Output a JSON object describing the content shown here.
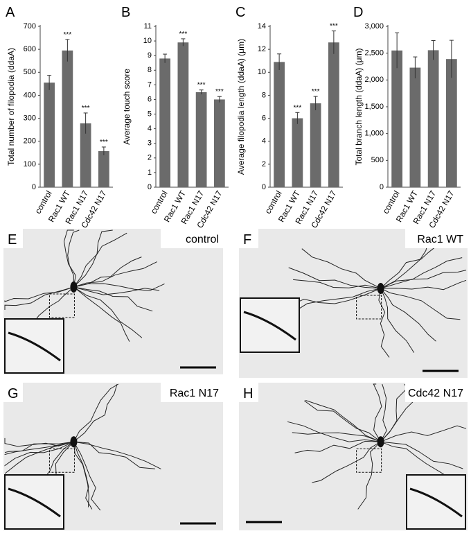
{
  "chart_data": [
    {
      "type": "bar",
      "letter": "A",
      "y_label": "Total number of filopodia (ddaA)",
      "categories": [
        "control",
        "Rac1 WT",
        "Rac1 N17",
        "Cdc42 N17"
      ],
      "values": [
        455,
        595,
        278,
        157
      ],
      "errors": [
        32,
        48,
        45,
        18
      ],
      "annotations": [
        null,
        "***",
        "***",
        "***"
      ],
      "color": "#6b6b6b",
      "ylim": [
        0,
        700
      ],
      "yticks": [
        0,
        100,
        200,
        300,
        400,
        500,
        600,
        700
      ]
    },
    {
      "type": "bar",
      "letter": "B",
      "y_label": "Average touch score",
      "categories": [
        "control",
        "Rac1 WT",
        "Rac1 N17",
        "Cdc42 N17"
      ],
      "values": [
        8.8,
        9.9,
        6.5,
        6.0
      ],
      "errors": [
        0.3,
        0.25,
        0.15,
        0.2
      ],
      "annotations": [
        null,
        "***",
        "***",
        "***"
      ],
      "color": "#6b6b6b",
      "ylim": [
        0,
        11
      ],
      "yticks": [
        0,
        1,
        2,
        3,
        4,
        5,
        6,
        7,
        8,
        9,
        10,
        11
      ]
    },
    {
      "type": "bar",
      "letter": "C",
      "y_label": "Average filopodia length (ddaA) (μm)",
      "categories": [
        "control",
        "Rac1 WT",
        "Rac1 N17",
        "Cdc42 N17"
      ],
      "values": [
        10.9,
        6.0,
        7.3,
        12.6
      ],
      "errors": [
        0.7,
        0.5,
        0.6,
        1.0
      ],
      "annotations": [
        null,
        "***",
        "***",
        "***"
      ],
      "color": "#6b6b6b",
      "ylim": [
        0,
        14
      ],
      "yticks": [
        0,
        2,
        4,
        6,
        8,
        10,
        12,
        14
      ]
    },
    {
      "type": "bar",
      "letter": "D",
      "y_label": "Total branch length (ddaA) (μm)",
      "categories": [
        "control",
        "Rac1 WT",
        "Rac1 N17",
        "Cdc42 N17"
      ],
      "values": [
        2550,
        2230,
        2555,
        2390
      ],
      "errors": [
        330,
        200,
        180,
        350
      ],
      "color": "#6b6b6b",
      "ylim": [
        0,
        3000
      ],
      "yticks": [
        0,
        500,
        {
          "value": 1000,
          "label": "1,000"
        },
        {
          "value": 1500,
          "label": "1,500"
        },
        {
          "value": 2000,
          "label": "2,000"
        },
        {
          "value": 2500,
          "label": "2,500"
        },
        {
          "value": 3000,
          "label": "3,000"
        }
      ]
    }
  ],
  "images": [
    {
      "letter": "E",
      "label": "control"
    },
    {
      "letter": "F",
      "label": "Rac1 WT"
    },
    {
      "letter": "G",
      "label": "Rac1 N17"
    },
    {
      "letter": "H",
      "label": "Cdc42 N17"
    }
  ]
}
